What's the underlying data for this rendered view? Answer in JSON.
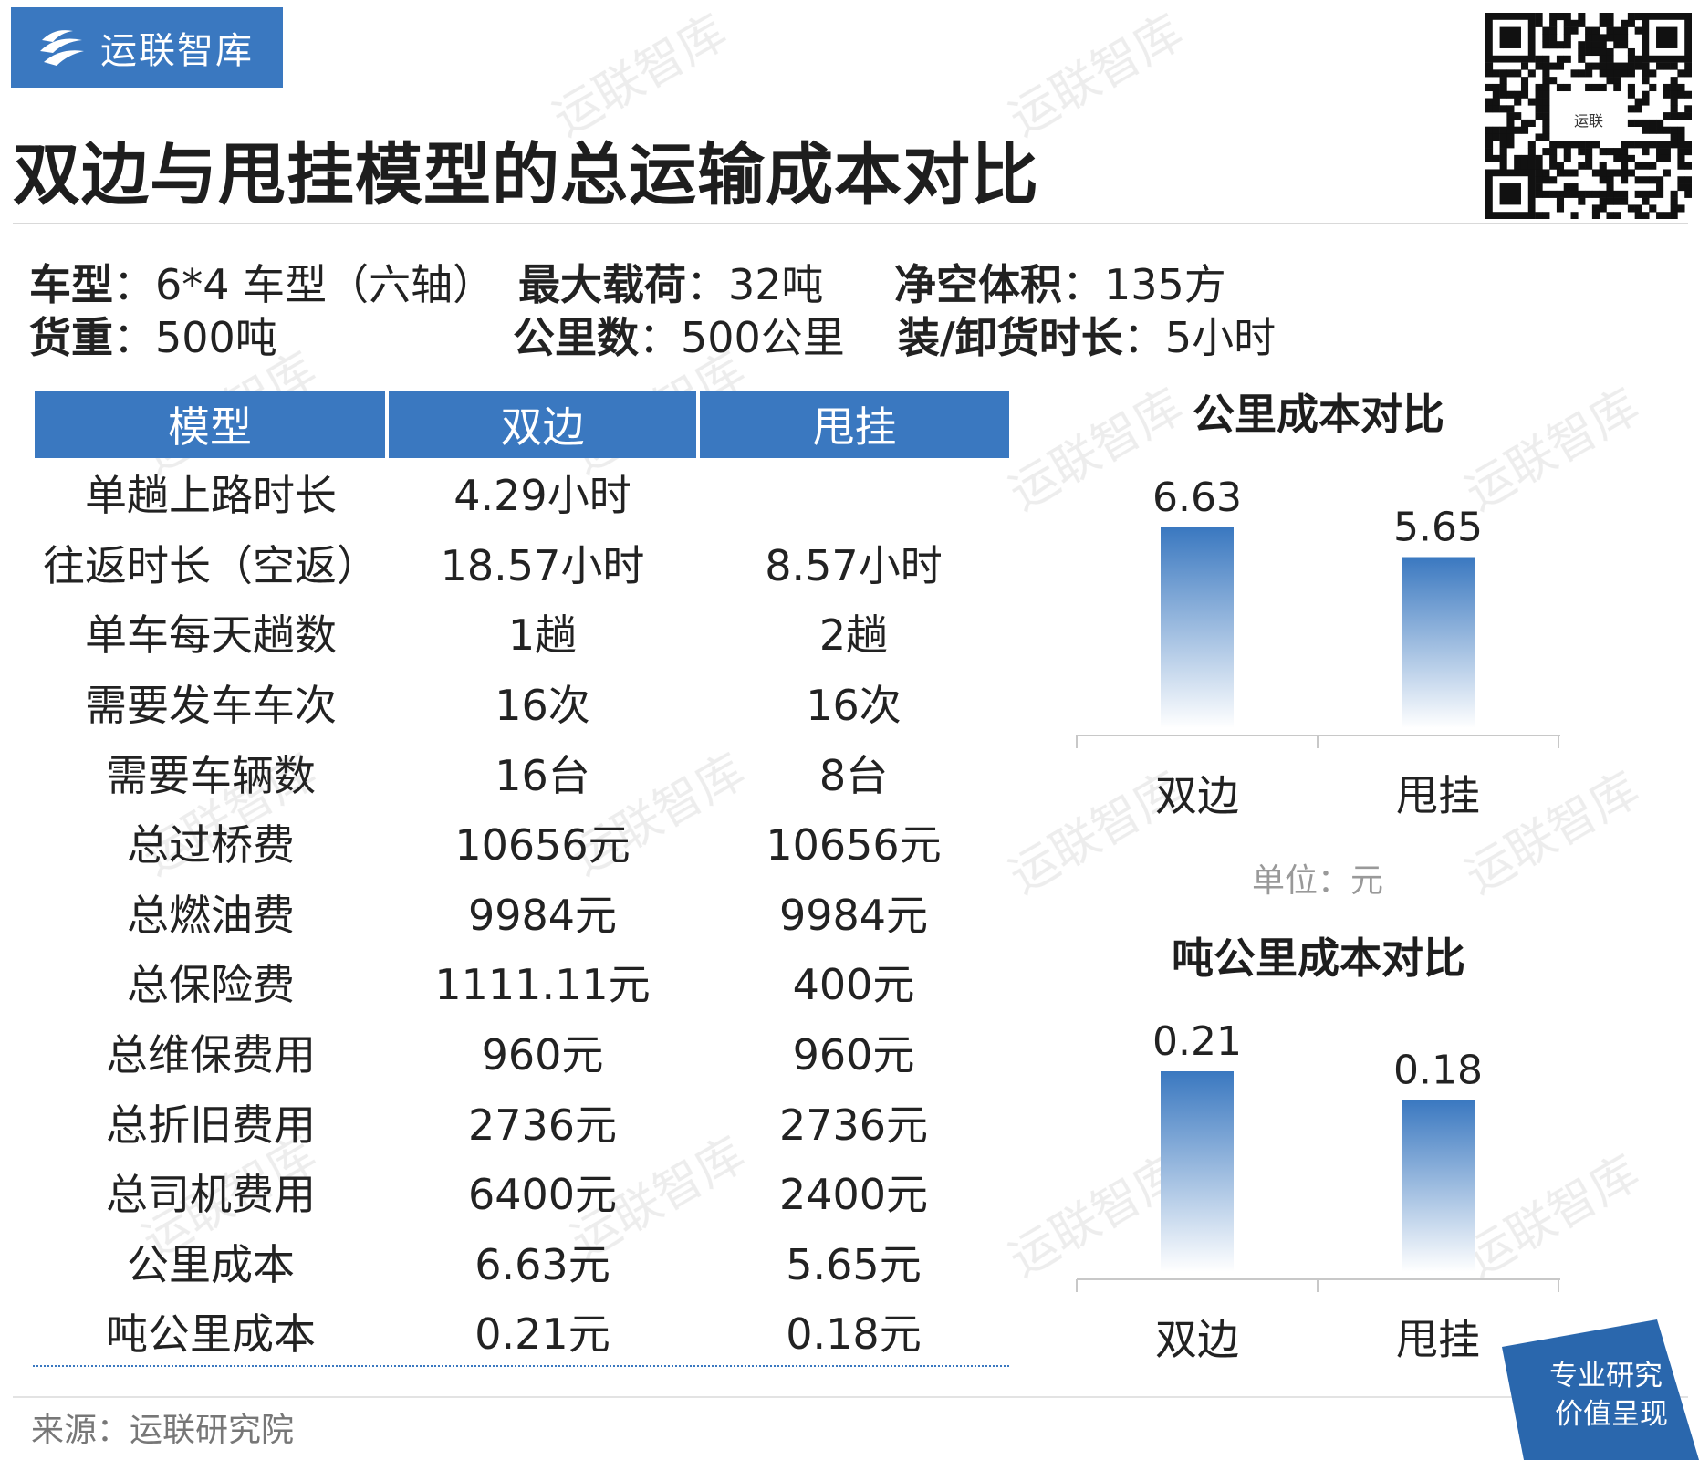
{
  "brand": {
    "name": "运联智库",
    "qr_label": "运联",
    "watermark": "运联智库"
  },
  "title": "双边与甩挂模型的总运输成本对比",
  "specs": [
    {
      "key": "车型",
      "sep": "：",
      "value": "6*4 车型（六轴）"
    },
    {
      "key": "最大载荷",
      "sep": "：",
      "value": "32吨"
    },
    {
      "key": "净空体积",
      "sep": "：",
      "value": "135方"
    },
    {
      "key": "货重",
      "sep": "：",
      "value": "500吨"
    },
    {
      "key": "公里数",
      "sep": "：",
      "value": "500公里"
    },
    {
      "key": "装/卸货时长",
      "sep": "：",
      "value": "5小时"
    }
  ],
  "table": {
    "headers": [
      "模型",
      "双边",
      "甩挂"
    ],
    "rows": [
      [
        "单趟上路时长",
        "4.29小时",
        ""
      ],
      [
        "往返时长（空返）",
        "18.57小时",
        "8.57小时"
      ],
      [
        "单车每天趟数",
        "1趟",
        "2趟"
      ],
      [
        "需要发车车次",
        "16次",
        "16次"
      ],
      [
        "需要车辆数",
        "16台",
        "8台"
      ],
      [
        "总过桥费",
        "10656元",
        "10656元"
      ],
      [
        "总燃油费",
        "9984元",
        "9984元"
      ],
      [
        "总保险费",
        "1111.11元",
        "400元"
      ],
      [
        "总维保费用",
        "960元",
        "960元"
      ],
      [
        "总折旧费用",
        "2736元",
        "2736元"
      ],
      [
        "总司机费用",
        "6400元",
        "2400元"
      ],
      [
        "公里成本",
        "6.63元",
        "5.65元"
      ],
      [
        "吨公里成本",
        "0.21元",
        "0.18元"
      ]
    ]
  },
  "unit_label": "单位：元",
  "source": "来源：运联研究院",
  "badge": {
    "line1": "专业研究",
    "line2": "价值呈现"
  },
  "colors": {
    "accent": "#3a78c0",
    "bar_top": "#3a78c0"
  },
  "chart_data": [
    {
      "type": "bar",
      "title": "公里成本对比",
      "categories": [
        "双边",
        "甩挂"
      ],
      "values": [
        6.63,
        5.65
      ],
      "labels": [
        "6.63",
        "5.65"
      ],
      "ylim": [
        0,
        6.63
      ]
    },
    {
      "type": "bar",
      "title": "吨公里成本对比",
      "categories": [
        "双边",
        "甩挂"
      ],
      "values": [
        0.21,
        0.18
      ],
      "labels": [
        "0.21",
        "0.18"
      ],
      "ylim": [
        0,
        0.21
      ]
    }
  ]
}
